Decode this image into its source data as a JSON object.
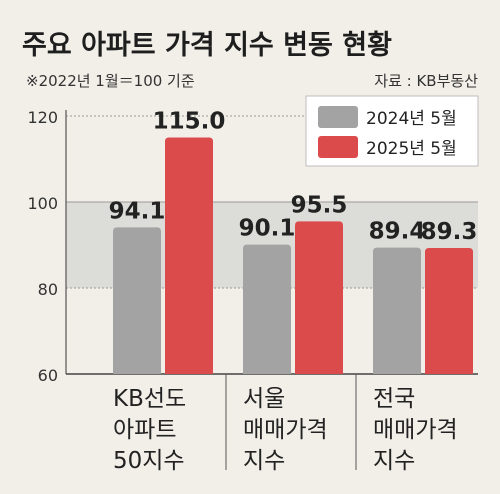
{
  "chart_data": {
    "type": "bar",
    "title": "주요 아파트 가격 지수 변동 현황",
    "subtitle": "※2022년 1월＝100 기준",
    "source": "자료 : KB부동산",
    "categories": [
      [
        "KB선도",
        "아파트",
        "50지수"
      ],
      [
        "서울",
        "매매가격",
        "지수"
      ],
      [
        "전국",
        "매매가격",
        "지수"
      ]
    ],
    "series": [
      {
        "name": "2024년 5월",
        "values": [
          94.1,
          90.1,
          89.4
        ],
        "color": "#a3a3a3",
        "labels": [
          "94.1",
          "90.1",
          "89.4"
        ]
      },
      {
        "name": "2025년 5월",
        "values": [
          115.0,
          95.5,
          89.3
        ],
        "color": "#dc4b4b",
        "labels": [
          "115.0",
          "95.5",
          "89.3"
        ]
      }
    ],
    "ylim": [
      60,
      120
    ],
    "yticks": [
      60,
      80,
      100,
      120
    ],
    "ytick_labels": [
      "60",
      "80",
      "100",
      "120"
    ],
    "highlight_band": [
      80,
      100
    ],
    "grid": true,
    "legend": "top-right"
  }
}
